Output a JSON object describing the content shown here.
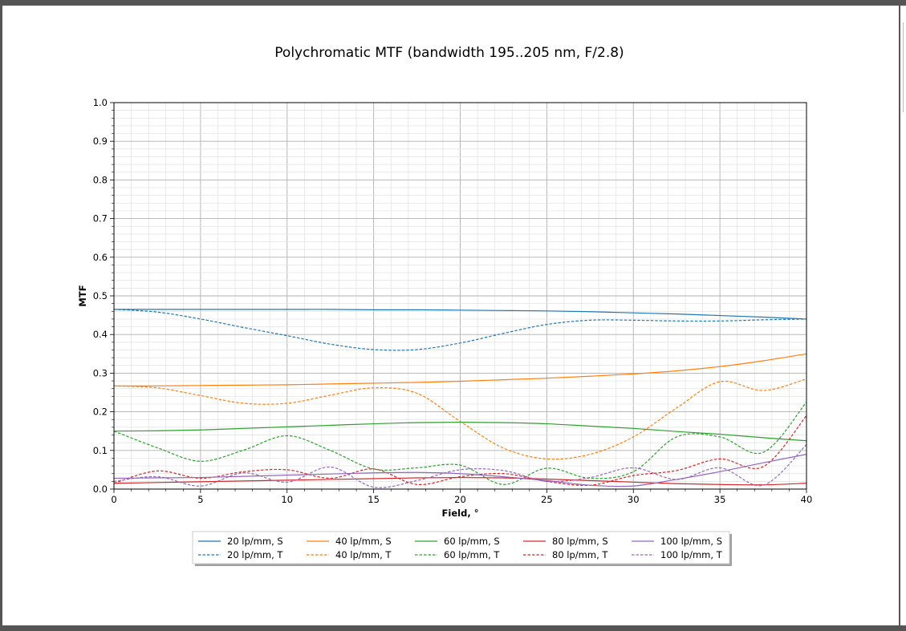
{
  "chart_data": {
    "type": "line",
    "title": "Polychromatic MTF (bandwidth 195..205 nm, F/2.8)",
    "xlabel": "Field, °",
    "ylabel": "MTF",
    "xlim": [
      0,
      40
    ],
    "ylim": [
      0,
      1.0
    ],
    "x_ticks": [
      "0",
      "5",
      "10",
      "15",
      "20",
      "25",
      "30",
      "35",
      "40"
    ],
    "y_ticks": [
      "0.0",
      "0.1",
      "0.2",
      "0.3",
      "0.4",
      "0.5",
      "0.6",
      "0.7",
      "0.8",
      "0.9",
      "1.0"
    ],
    "grid": "major and minor",
    "legend_position": "bottom-center, below axis",
    "x": [
      0,
      2.5,
      5,
      7.5,
      10,
      12.5,
      15,
      17.5,
      20,
      22.5,
      25,
      27.5,
      30,
      32.5,
      35,
      37.5,
      40
    ],
    "series": [
      {
        "name": "20 lp/mm, S",
        "color": "#1f77b4",
        "style": "solid",
        "values": [
          0.465,
          0.465,
          0.465,
          0.465,
          0.465,
          0.465,
          0.464,
          0.464,
          0.463,
          0.462,
          0.461,
          0.459,
          0.456,
          0.453,
          0.449,
          0.445,
          0.44
        ]
      },
      {
        "name": "20 lp/mm, T",
        "color": "#1f77b4",
        "style": "dashed",
        "values": [
          0.465,
          0.458,
          0.44,
          0.418,
          0.397,
          0.375,
          0.361,
          0.361,
          0.378,
          0.403,
          0.426,
          0.437,
          0.437,
          0.435,
          0.435,
          0.438,
          0.44
        ]
      },
      {
        "name": "40 lp/mm, S",
        "color": "#ff7f0e",
        "style": "solid",
        "values": [
          0.267,
          0.267,
          0.268,
          0.269,
          0.27,
          0.272,
          0.274,
          0.276,
          0.279,
          0.283,
          0.287,
          0.292,
          0.298,
          0.306,
          0.317,
          0.332,
          0.35
        ]
      },
      {
        "name": "40 lp/mm, T",
        "color": "#ff7f0e",
        "style": "dashed",
        "values": [
          0.267,
          0.262,
          0.242,
          0.222,
          0.222,
          0.243,
          0.262,
          0.248,
          0.175,
          0.106,
          0.078,
          0.09,
          0.135,
          0.21,
          0.278,
          0.255,
          0.285
        ]
      },
      {
        "name": "60 lp/mm, S",
        "color": "#2ca02c",
        "style": "solid",
        "values": [
          0.15,
          0.151,
          0.153,
          0.157,
          0.161,
          0.165,
          0.169,
          0.172,
          0.173,
          0.172,
          0.169,
          0.163,
          0.157,
          0.149,
          0.142,
          0.133,
          0.125
        ]
      },
      {
        "name": "60 lp/mm, T",
        "color": "#2ca02c",
        "style": "dashed",
        "values": [
          0.15,
          0.107,
          0.072,
          0.101,
          0.138,
          0.1,
          0.052,
          0.055,
          0.062,
          0.012,
          0.054,
          0.028,
          0.045,
          0.135,
          0.135,
          0.095,
          0.225
        ]
      },
      {
        "name": "80 lp/mm, S",
        "color": "#d62728",
        "style": "solid",
        "values": [
          0.015,
          0.017,
          0.019,
          0.021,
          0.023,
          0.025,
          0.027,
          0.029,
          0.03,
          0.029,
          0.026,
          0.022,
          0.018,
          0.014,
          0.012,
          0.011,
          0.015
        ]
      },
      {
        "name": "80 lp/mm, T",
        "color": "#d62728",
        "style": "dashed",
        "values": [
          0.015,
          0.047,
          0.028,
          0.045,
          0.05,
          0.028,
          0.052,
          0.012,
          0.032,
          0.04,
          0.02,
          0.01,
          0.035,
          0.048,
          0.078,
          0.058,
          0.19
        ]
      },
      {
        "name": "100 lp/mm, S",
        "color": "#9467bd",
        "style": "solid",
        "values": [
          0.028,
          0.029,
          0.03,
          0.033,
          0.036,
          0.039,
          0.042,
          0.043,
          0.04,
          0.032,
          0.022,
          0.01,
          0.008,
          0.025,
          0.045,
          0.068,
          0.09
        ]
      },
      {
        "name": "100 lp/mm, T",
        "color": "#9467bd",
        "style": "dashed",
        "values": [
          0.02,
          0.032,
          0.008,
          0.042,
          0.018,
          0.057,
          0.005,
          0.022,
          0.05,
          0.048,
          0.02,
          0.03,
          0.055,
          0.025,
          0.055,
          0.01,
          0.115
        ]
      }
    ]
  }
}
